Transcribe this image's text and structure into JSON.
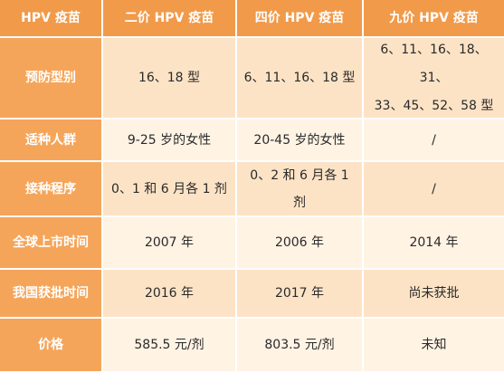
{
  "colors": {
    "header_bg": "#f19a4a",
    "row_header_bg": "#f5a55a",
    "odd_row_bg": "#fde3c6",
    "even_row_bg": "#fff3e4"
  },
  "table": {
    "headers": [
      "HPV 疫苗",
      "二价 HPV 疫苗",
      "四价 HPV 疫苗",
      "九价 HPV 疫苗"
    ],
    "rows": [
      {
        "label": "预防型别",
        "cells": [
          "16、18 型",
          "6、11、16、18 型",
          "6、11、16、18、31、\n33、45、52、58 型"
        ]
      },
      {
        "label": "适种人群",
        "cells": [
          "9-25 岁的女性",
          "20-45 岁的女性",
          "/"
        ]
      },
      {
        "label": "接种程序",
        "cells": [
          "0、1 和 6 月各 1 剂",
          "0、2 和 6 月各 1 剂",
          "/"
        ]
      },
      {
        "label": "全球上市时间",
        "cells": [
          "2007 年",
          "2006 年",
          "2014 年"
        ]
      },
      {
        "label": "我国获批时间",
        "cells": [
          "2016 年",
          "2017 年",
          "尚未获批"
        ]
      },
      {
        "label": "价格",
        "cells": [
          "585.5 元/剂",
          "803.5 元/剂",
          "未知"
        ]
      }
    ]
  }
}
